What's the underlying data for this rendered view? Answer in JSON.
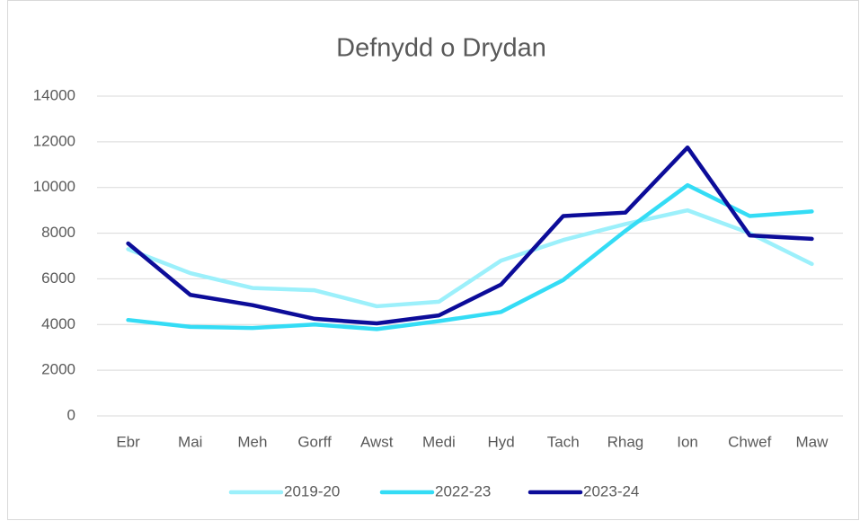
{
  "chart_data": {
    "type": "line",
    "title": "Defnydd o Drydan",
    "categories": [
      "Ebr",
      "Mai",
      "Meh",
      "Gorff",
      "Awst",
      "Medi",
      "Hyd",
      "Tach",
      "Rhag",
      "Ion",
      "Chwef",
      "Maw"
    ],
    "series": [
      {
        "name": "2019-20",
        "color": "#9cf0fb",
        "values": [
          7300,
          6250,
          5600,
          5500,
          4800,
          5000,
          6800,
          7700,
          8400,
          9000,
          8000,
          6650
        ]
      },
      {
        "name": "2022-23",
        "color": "#34dcf5",
        "values": [
          4200,
          3900,
          3850,
          4000,
          3800,
          4150,
          4550,
          5950,
          8100,
          10100,
          8750,
          8950
        ]
      },
      {
        "name": "2023-24",
        "color": "#0c0c99",
        "values": [
          7550,
          5300,
          4850,
          4250,
          4050,
          4400,
          5750,
          8750,
          8900,
          11750,
          7900,
          7750
        ]
      }
    ],
    "ylim": [
      0,
      14000
    ],
    "yticks": [
      0,
      2000,
      4000,
      6000,
      8000,
      10000,
      12000,
      14000
    ],
    "grid": true,
    "legend": "bottom"
  }
}
